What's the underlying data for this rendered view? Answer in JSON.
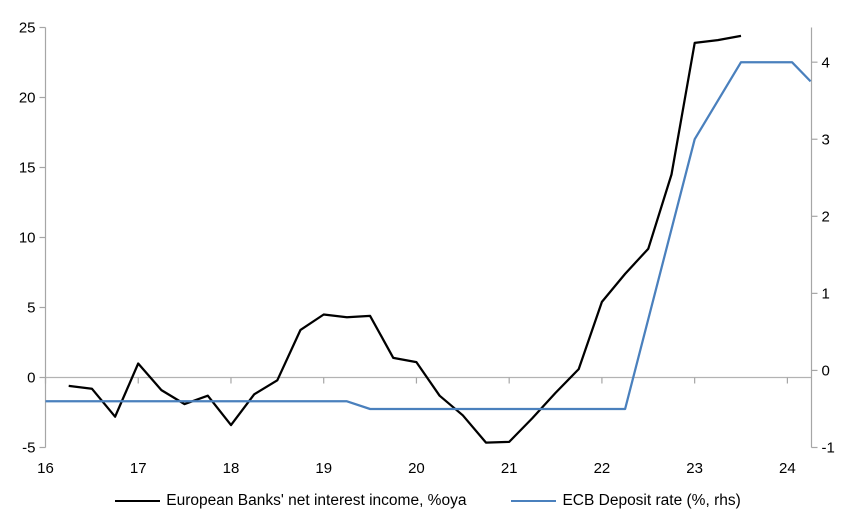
{
  "chart_data": {
    "type": "line",
    "title": "",
    "legend_position": "bottom-center",
    "grid": "zero-line-only",
    "x_axis": {
      "min": 16,
      "max": 24.26,
      "ticks": [
        16,
        17,
        18,
        19,
        20,
        21,
        22,
        23,
        24
      ]
    },
    "left_axis": {
      "min": -5,
      "max": 25,
      "ticks": [
        25,
        20,
        15,
        10,
        5,
        0,
        -5
      ]
    },
    "right_axis": {
      "min": -1,
      "max": 4.45,
      "ticks": [
        4,
        3,
        2,
        1,
        0,
        -1
      ]
    },
    "series": [
      {
        "name": "European Banks' net interest income, %oya",
        "axis": "left",
        "color": "#000000",
        "points": [
          [
            16.25,
            -0.6
          ],
          [
            16.5,
            -0.8
          ],
          [
            16.75,
            -2.8
          ],
          [
            17.0,
            1.0
          ],
          [
            17.25,
            -0.9
          ],
          [
            17.5,
            -1.9
          ],
          [
            17.75,
            -1.3
          ],
          [
            18.0,
            -3.4
          ],
          [
            18.25,
            -1.2
          ],
          [
            18.5,
            -0.2
          ],
          [
            18.75,
            3.4
          ],
          [
            19.0,
            4.5
          ],
          [
            19.25,
            4.3
          ],
          [
            19.5,
            4.4
          ],
          [
            19.75,
            1.4
          ],
          [
            20.0,
            1.1
          ],
          [
            20.25,
            -1.3
          ],
          [
            20.5,
            -2.7
          ],
          [
            20.75,
            -4.65
          ],
          [
            21.0,
            -4.6
          ],
          [
            21.25,
            -2.9
          ],
          [
            21.5,
            -1.1
          ],
          [
            21.75,
            0.6
          ],
          [
            22.0,
            5.4
          ],
          [
            22.25,
            7.4
          ],
          [
            22.5,
            9.2
          ],
          [
            22.75,
            14.5
          ],
          [
            23.0,
            23.9
          ],
          [
            23.25,
            24.1
          ],
          [
            23.5,
            24.4
          ]
        ]
      },
      {
        "name": "ECB Deposit rate (%, rhs)",
        "axis": "right",
        "color": "#4a80bd",
        "points": [
          [
            16.0,
            -0.4
          ],
          [
            19.25,
            -0.4
          ],
          [
            19.5,
            -0.5
          ],
          [
            22.25,
            -0.5
          ],
          [
            23.0,
            3.0
          ],
          [
            23.5,
            4.0
          ],
          [
            24.05,
            4.0
          ],
          [
            24.25,
            3.75
          ]
        ]
      }
    ],
    "colors": {
      "axis": "#a6a6a6",
      "zero_line": "#b3b3b3",
      "text": "#000000",
      "background": "#ffffff"
    }
  }
}
